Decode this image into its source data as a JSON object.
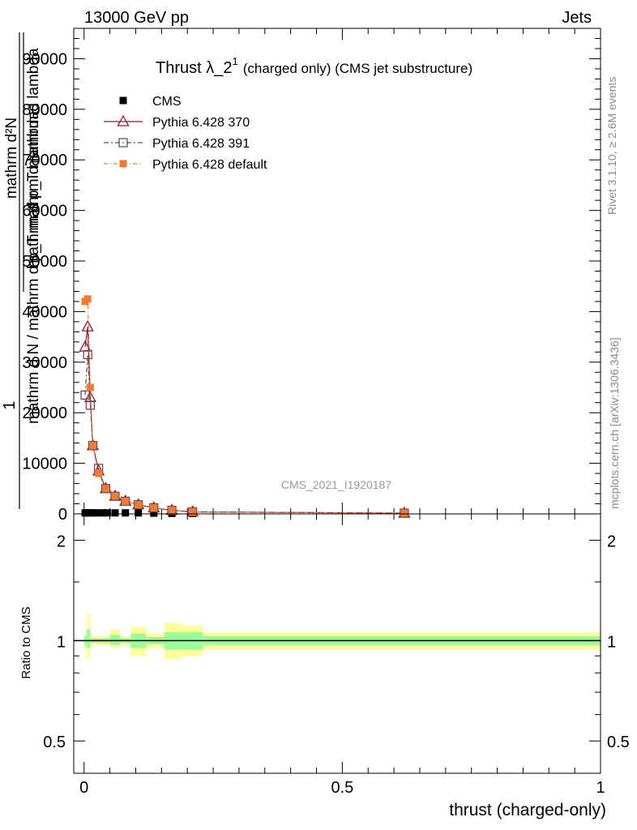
{
  "header": {
    "left": "13000 GeV pp",
    "right": "Jets"
  },
  "side_labels": {
    "rivet": "Rivet 3.1.10, ≥ 2.6M events",
    "mcplots": "mcplots.cern.ch [arXiv:1306.3436]"
  },
  "watermark": "CMS_2021_I1920187",
  "chart_data": [
    {
      "type": "scatter",
      "title": "Thrust λ_2",
      "title_superscript": "1",
      "title_suffix": "(charged only) (CMS jet substructure)",
      "ylabel_numerator": "mathrm d²N",
      "ylabel_numerator_tail": "1",
      "ylabel_denominator": "mathrm d p_T mathrm d lambda",
      "ylabel_denominator_main": "mathrm d N / mathrm d p_T mathrm d lambda",
      "xlabel": "",
      "xlim": [
        -0.02,
        1.0
      ],
      "ylim": [
        0,
        96000
      ],
      "yticks": [
        0,
        10000,
        20000,
        30000,
        40000,
        50000,
        60000,
        70000,
        80000,
        90000
      ],
      "ytick_labels": [
        "0",
        "10000",
        "20000",
        "30000",
        "40000",
        "50000",
        "60000",
        "70000",
        "80000",
        "90000"
      ],
      "legend_position": "top-left",
      "series": [
        {
          "name": "CMS",
          "color": "#000000",
          "marker": "filled-square",
          "x": [
            0.002,
            0.007,
            0.012,
            0.017,
            0.025,
            0.035,
            0.045,
            0.06,
            0.08,
            0.105,
            0.135,
            0.17,
            0.21,
            0.62
          ],
          "values": [
            200,
            200,
            200,
            200,
            200,
            200,
            200,
            200,
            200,
            200,
            150,
            100,
            80,
            30
          ]
        },
        {
          "name": "Pythia 6.428 370",
          "color": "#8b1a2b",
          "marker": "open-triangle",
          "x": [
            0.002,
            0.007,
            0.012,
            0.017,
            0.028,
            0.042,
            0.06,
            0.08,
            0.105,
            0.135,
            0.17,
            0.21,
            0.62
          ],
          "values": [
            33000,
            37000,
            23000,
            13500,
            8500,
            5000,
            3500,
            2500,
            1800,
            1200,
            700,
            400,
            150
          ]
        },
        {
          "name": "Pythia 6.428 391",
          "color": "#6b4a5a",
          "marker": "open-square",
          "x": [
            0.002,
            0.007,
            0.012,
            0.017,
            0.028,
            0.042,
            0.06,
            0.08,
            0.105,
            0.135,
            0.17,
            0.21,
            0.62
          ],
          "values": [
            23500,
            31500,
            21500,
            13500,
            9000,
            5000,
            3500,
            2500,
            1800,
            1200,
            700,
            400,
            150
          ]
        },
        {
          "name": "Pythia 6.428 default",
          "color": "#f47a30",
          "marker": "filled-square",
          "x": [
            0.002,
            0.007,
            0.012,
            0.017,
            0.028,
            0.042,
            0.06,
            0.08,
            0.105,
            0.135,
            0.17,
            0.21,
            0.62
          ],
          "values": [
            42000,
            42500,
            25000,
            13500,
            8000,
            5000,
            3500,
            2500,
            1800,
            1200,
            700,
            400,
            150
          ]
        }
      ]
    },
    {
      "type": "area",
      "ylabel": "Ratio to CMS",
      "xlabel": "thrust (charged-only)",
      "xlim": [
        -0.02,
        1.0
      ],
      "ylim": [
        0.4,
        2.4
      ],
      "log_y": true,
      "ytick_labels": [
        "0.5",
        "1",
        "2"
      ],
      "yticks": [
        0.5,
        1,
        2
      ],
      "xtick_labels": [
        "0",
        "0.5",
        "1"
      ],
      "xticks": [
        0,
        0.5,
        1
      ],
      "band_colors": {
        "outer": "#ffff99",
        "inner": "#99ff99",
        "reference_line": "#000000"
      },
      "bins": [
        {
          "x0": 0.0,
          "x1": 0.005,
          "outer": [
            0.95,
            1.05
          ],
          "inner": [
            0.97,
            1.03
          ]
        },
        {
          "x0": 0.005,
          "x1": 0.012,
          "outer": [
            0.88,
            1.2
          ],
          "inner": [
            0.95,
            1.08
          ]
        },
        {
          "x0": 0.012,
          "x1": 0.05,
          "outer": [
            0.97,
            1.03
          ],
          "inner": [
            0.985,
            1.015
          ]
        },
        {
          "x0": 0.05,
          "x1": 0.07,
          "outer": [
            0.95,
            1.08
          ],
          "inner": [
            0.97,
            1.04
          ]
        },
        {
          "x0": 0.07,
          "x1": 0.09,
          "outer": [
            0.97,
            1.03
          ],
          "inner": [
            0.985,
            1.015
          ]
        },
        {
          "x0": 0.09,
          "x1": 0.12,
          "outer": [
            0.9,
            1.1
          ],
          "inner": [
            0.95,
            1.05
          ]
        },
        {
          "x0": 0.12,
          "x1": 0.155,
          "outer": [
            0.95,
            1.05
          ],
          "inner": [
            0.975,
            1.025
          ]
        },
        {
          "x0": 0.155,
          "x1": 0.19,
          "outer": [
            0.88,
            1.13
          ],
          "inner": [
            0.94,
            1.06
          ]
        },
        {
          "x0": 0.19,
          "x1": 0.23,
          "outer": [
            0.9,
            1.11
          ],
          "inner": [
            0.94,
            1.06
          ]
        },
        {
          "x0": 0.23,
          "x1": 1.0,
          "outer": [
            0.94,
            1.06
          ],
          "inner": [
            0.97,
            1.03
          ]
        }
      ]
    }
  ]
}
